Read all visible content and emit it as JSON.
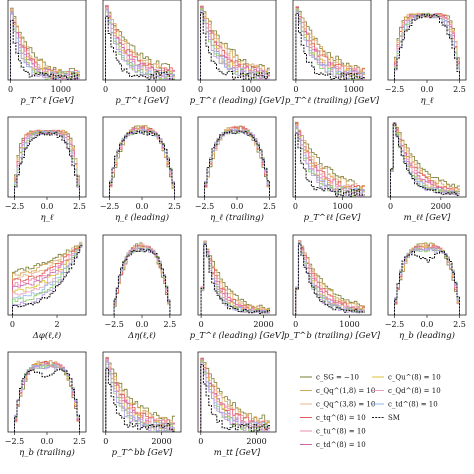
{
  "figure": {
    "colors": {
      "SM": "#111111",
      "cSG": "#7a7a30",
      "cQq18": "#d4a85a",
      "cQq31": "#e8b88c",
      "cQq38": "#e35a5a",
      "ctu8": "#f08ab4",
      "ctd8": "#cc66aa",
      "cQu8": "#d8c238",
      "cQd8": "#e8a0c0",
      "ctq8": "#8fb9e8",
      "green": "#8ccc6a",
      "purple": "#b89ae0"
    }
  },
  "chart_data": [
    {
      "id": "p1",
      "type": "line",
      "xlabel": "p_T^ℓ [GeV]",
      "ticks": [
        {
          "v": 0,
          "t": "0"
        },
        {
          "v": 1000,
          "t": "1000"
        }
      ],
      "xlim": [
        -50,
        1500
      ],
      "shape": "falling",
      "mode": "steep"
    },
    {
      "id": "p2",
      "type": "line",
      "xlabel": "p_T^ℓ [GeV]",
      "ticks": [
        {
          "v": 0,
          "t": "0"
        },
        {
          "v": 1000,
          "t": "1000"
        }
      ],
      "xlim": [
        -50,
        1500
      ],
      "shape": "falling",
      "mode": "medium"
    },
    {
      "id": "p3",
      "type": "line",
      "xlabel": "p_T^ℓ (leading) [GeV]",
      "ticks": [
        {
          "v": 0,
          "t": "0"
        },
        {
          "v": 1000,
          "t": "1000"
        }
      ],
      "xlim": [
        -50,
        1500
      ],
      "shape": "falling",
      "mode": "medium"
    },
    {
      "id": "p4",
      "type": "line",
      "xlabel": "p_T^ℓ (trailing) [GeV]",
      "ticks": [
        {
          "v": 0,
          "t": "0"
        },
        {
          "v": 1000,
          "t": "1000"
        }
      ],
      "xlim": [
        -50,
        1300
      ],
      "shape": "falling",
      "mode": "medium"
    },
    {
      "id": "p5",
      "type": "line",
      "xlabel": "η_ℓ",
      "ticks": [
        {
          "v": -2.5,
          "t": "−2.5"
        },
        {
          "v": 0,
          "t": "0.0"
        },
        {
          "v": 2.5,
          "t": "2.5"
        }
      ],
      "xlim": [
        -3,
        3
      ],
      "shape": "dome",
      "mode": "flat"
    },
    {
      "id": "p6",
      "type": "line",
      "xlabel": "η_ℓ",
      "ticks": [
        {
          "v": -2.5,
          "t": "−2.5"
        },
        {
          "v": 0,
          "t": "0.0"
        },
        {
          "v": 2.5,
          "t": "2.5"
        }
      ],
      "xlim": [
        -3,
        3
      ],
      "shape": "dome",
      "mode": "flat"
    },
    {
      "id": "p7",
      "type": "line",
      "xlabel": "η_ℓ (leading)",
      "ticks": [
        {
          "v": -2.5,
          "t": "−2.5"
        },
        {
          "v": 0,
          "t": "0.0"
        },
        {
          "v": 2.5,
          "t": "2.5"
        }
      ],
      "xlim": [
        -3,
        3
      ],
      "shape": "dome",
      "mode": "round"
    },
    {
      "id": "p8",
      "type": "line",
      "xlabel": "η_ℓ (trailing)",
      "ticks": [
        {
          "v": -2.5,
          "t": "−2.5"
        },
        {
          "v": 0,
          "t": "0.0"
        },
        {
          "v": 2.5,
          "t": "2.5"
        }
      ],
      "xlim": [
        -3,
        3
      ],
      "shape": "dome",
      "mode": "round"
    },
    {
      "id": "p9",
      "type": "line",
      "xlabel": "p_T^ℓℓ [GeV]",
      "ticks": [
        {
          "v": 0,
          "t": "0"
        },
        {
          "v": 1000,
          "t": "1000"
        }
      ],
      "xlim": [
        -50,
        1600
      ],
      "shape": "falling",
      "mode": "medium"
    },
    {
      "id": "p10",
      "type": "line",
      "xlabel": "m_ℓℓ [GeV]",
      "ticks": [
        {
          "v": 0,
          "t": "0"
        },
        {
          "v": 2000,
          "t": "2000"
        }
      ],
      "xlim": [
        -100,
        3000
      ],
      "shape": "riseFall",
      "mode": "medium"
    },
    {
      "id": "p11",
      "type": "line",
      "xlabel": "Δφ(ℓ,ℓ)",
      "ticks": [
        {
          "v": 0,
          "t": "0"
        },
        {
          "v": 2,
          "t": "2"
        }
      ],
      "xlim": [
        -0.2,
        3.3
      ],
      "shape": "rising",
      "mode": "medium"
    },
    {
      "id": "p12",
      "type": "line",
      "xlabel": "Δη(ℓ,ℓ)",
      "ticks": [
        {
          "v": -2.5,
          "t": "−2.5"
        },
        {
          "v": 0,
          "t": "0.0"
        },
        {
          "v": 2.5,
          "t": "2.5"
        }
      ],
      "xlim": [
        -3.5,
        3.5
      ],
      "shape": "dome",
      "mode": "round"
    },
    {
      "id": "p13",
      "type": "line",
      "xlabel": "p_T^ℓ (leading) [GeV]",
      "ticks": [
        {
          "v": 0,
          "t": "0"
        },
        {
          "v": 2000,
          "t": "2000"
        }
      ],
      "xlim": [
        -100,
        2400
      ],
      "shape": "riseFall",
      "mode": "steep"
    },
    {
      "id": "p14",
      "type": "line",
      "xlabel": "p_T^b (trailing) [GeV]",
      "ticks": [
        {
          "v": 0,
          "t": "0"
        },
        {
          "v": 1000,
          "t": "1000"
        }
      ],
      "xlim": [
        -50,
        1400
      ],
      "shape": "riseFall",
      "mode": "medium"
    },
    {
      "id": "p15",
      "type": "line",
      "xlabel": "η_b (leading)",
      "ticks": [
        {
          "v": -2.5,
          "t": "−2.5"
        },
        {
          "v": 0,
          "t": "0.0"
        },
        {
          "v": 2.5,
          "t": "2.5"
        }
      ],
      "xlim": [
        -3,
        3
      ],
      "shape": "dome",
      "mode": "dip"
    },
    {
      "id": "p16",
      "type": "line",
      "xlabel": "η_b (trailing)",
      "ticks": [
        {
          "v": -2.5,
          "t": "−2.5"
        },
        {
          "v": 0,
          "t": "0.0"
        },
        {
          "v": 2.5,
          "t": "2.5"
        }
      ],
      "xlim": [
        -3,
        3
      ],
      "shape": "dome",
      "mode": "dip"
    },
    {
      "id": "p17",
      "type": "line",
      "xlabel": "p_T^bb [GeV]",
      "ticks": [
        {
          "v": 0,
          "t": "0"
        },
        {
          "v": 2000,
          "t": "2000"
        }
      ],
      "xlim": [
        -100,
        2700
      ],
      "shape": "falling",
      "mode": "medium"
    },
    {
      "id": "p18",
      "type": "line",
      "xlabel": "m_tt [GeV]",
      "ticks": [
        {
          "v": 0,
          "t": "0"
        },
        {
          "v": 2000,
          "t": "2000"
        }
      ],
      "xlim": [
        -100,
        2700
      ],
      "shape": "falling",
      "mode": "medium"
    }
  ],
  "legend": {
    "col1": [
      {
        "label": "c_SG = −10",
        "color": "cSG",
        "style": "solid"
      },
      {
        "label": "c_Qq^(1,8) = 10",
        "color": "cQq18",
        "style": "solid"
      },
      {
        "label": "c_Qq^(3,8) = 10",
        "color": "cQq31",
        "style": "solid"
      },
      {
        "label": "c_tq^(8) = 10",
        "color": "cQq38",
        "style": "solid"
      },
      {
        "label": "c_tu^(8) = 10",
        "color": "ctu8",
        "style": "solid"
      },
      {
        "label": "c_td^(8) = 10",
        "color": "ctd8",
        "style": "solid"
      }
    ],
    "col2": [
      {
        "label": "c_Qu^(8) = 10",
        "color": "cQu8",
        "style": "solid"
      },
      {
        "label": "c_Qd^(8) = 10",
        "color": "cQd8",
        "style": "solid"
      },
      {
        "label": "c_td^(8) = 10",
        "color": "ctq8",
        "style": "solid"
      },
      {
        "label": "SM",
        "color": "SM",
        "style": "dashed"
      }
    ]
  }
}
